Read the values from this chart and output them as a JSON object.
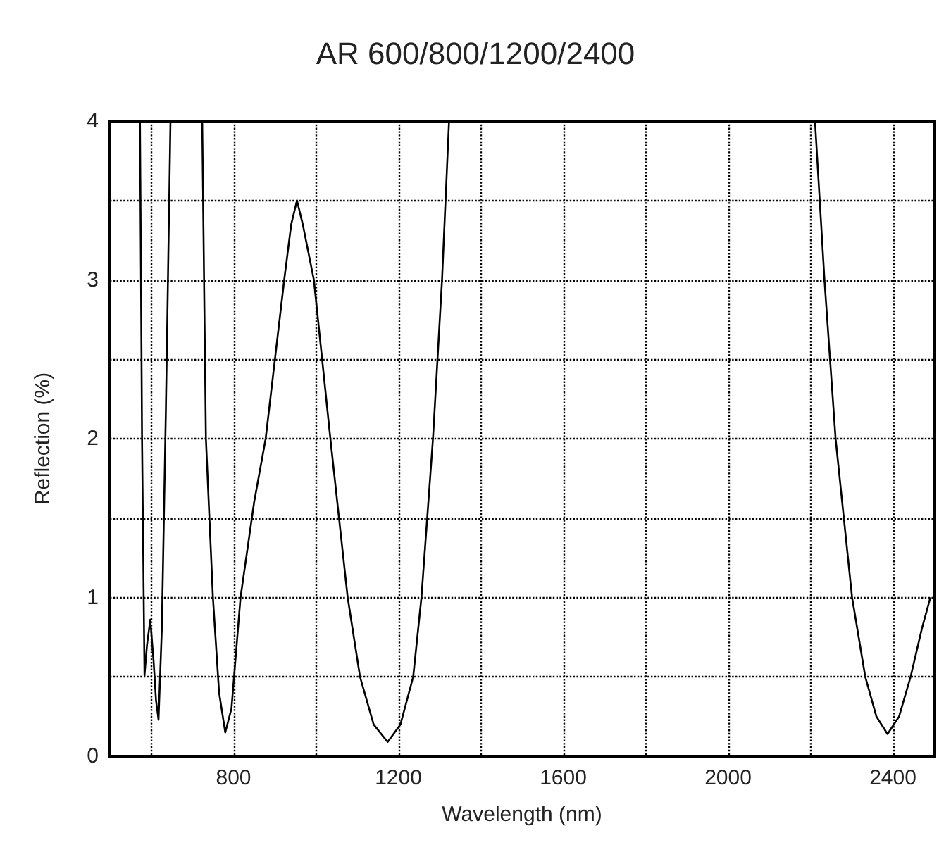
{
  "chart_data": {
    "type": "line",
    "title": "AR 600/800/1200/2400",
    "xlabel": "Wavelength (nm)",
    "ylabel": "Reflection (%)",
    "xlim": [
      500,
      2500
    ],
    "ylim": [
      0,
      4
    ],
    "xticks": [
      {
        "value": 600,
        "label": null
      },
      800,
      {
        "value": 1000,
        "label": null
      },
      1200,
      {
        "value": 1400,
        "label": null
      },
      1600,
      {
        "value": 1800,
        "label": null
      },
      2000,
      {
        "value": 2200,
        "label": null
      },
      2400
    ],
    "yticks": [
      0,
      {
        "value": 0.5,
        "label": null
      },
      1,
      {
        "value": 1.5,
        "label": null
      },
      2,
      {
        "value": 2.5,
        "label": null
      },
      3,
      {
        "value": 3.5,
        "label": null
      },
      4
    ],
    "grid": true,
    "marker": "none",
    "line_style": "solid",
    "series": [
      {
        "color": "#000000",
        "x": [
          573,
          578,
          584,
          590,
          598,
          606,
          612,
          618,
          626,
          636,
          647,
          null,
          724,
          733,
          750,
          765,
          780,
          795,
          817,
          850,
          878,
          923,
          940,
          954,
          968,
          995,
          1035,
          1077,
          1107,
          1140,
          1174,
          1205,
          1236,
          1256,
          1284,
          1306,
          1323,
          null,
          2211,
          2234,
          2261,
          2301,
          2333,
          2360,
          2387,
          2415,
          2443,
          2470,
          2491
        ],
        "values": [
          4,
          2,
          0.51,
          0.7,
          0.86,
          0.6,
          0.35,
          0.23,
          0.8,
          2.2,
          4,
          null,
          4,
          2,
          1,
          0.4,
          0.15,
          0.3,
          1,
          1.6,
          2,
          3,
          3.35,
          3.5,
          3.35,
          3,
          2,
          1,
          0.5,
          0.2,
          0.09,
          0.2,
          0.5,
          1,
          2,
          3,
          4,
          null,
          4,
          3,
          2,
          1,
          0.5,
          0.25,
          0.14,
          0.25,
          0.5,
          0.8,
          1.0
        ]
      }
    ]
  }
}
